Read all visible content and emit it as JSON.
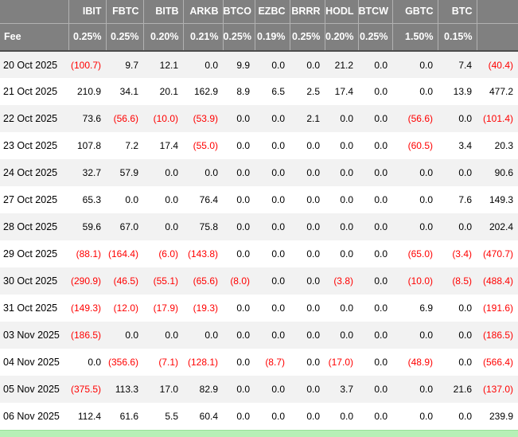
{
  "chart_data": {
    "type": "table",
    "columns": [
      "",
      "IBIT",
      "FBTC",
      "BITB",
      "ARKB",
      "BTCO",
      "EZBC",
      "BRRR",
      "HODL",
      "BTCW",
      "GBTC",
      "BTC",
      ""
    ],
    "fee_label": "Fee",
    "fees": [
      "0.25%",
      "0.25%",
      "0.20%",
      "0.21%",
      "0.25%",
      "0.19%",
      "0.25%",
      "0.20%",
      "0.25%",
      "1.50%",
      "0.15%"
    ],
    "rows": [
      {
        "date": "20 Oct 2025",
        "values": [
          "(100.7)",
          "9.7",
          "12.1",
          "0.0",
          "9.9",
          "0.0",
          "0.0",
          "21.2",
          "0.0",
          "0.0",
          "7.4",
          "(40.4)"
        ]
      },
      {
        "date": "21 Oct 2025",
        "values": [
          "210.9",
          "34.1",
          "20.1",
          "162.9",
          "8.9",
          "6.5",
          "2.5",
          "17.4",
          "0.0",
          "0.0",
          "13.9",
          "477.2"
        ]
      },
      {
        "date": "22 Oct 2025",
        "values": [
          "73.6",
          "(56.6)",
          "(10.0)",
          "(53.9)",
          "0.0",
          "0.0",
          "2.1",
          "0.0",
          "0.0",
          "(56.6)",
          "0.0",
          "(101.4)"
        ]
      },
      {
        "date": "23 Oct 2025",
        "values": [
          "107.8",
          "7.2",
          "17.4",
          "(55.0)",
          "0.0",
          "0.0",
          "0.0",
          "0.0",
          "0.0",
          "(60.5)",
          "3.4",
          "20.3"
        ]
      },
      {
        "date": "24 Oct 2025",
        "values": [
          "32.7",
          "57.9",
          "0.0",
          "0.0",
          "0.0",
          "0.0",
          "0.0",
          "0.0",
          "0.0",
          "0.0",
          "0.0",
          "90.6"
        ]
      },
      {
        "date": "27 Oct 2025",
        "values": [
          "65.3",
          "0.0",
          "0.0",
          "76.4",
          "0.0",
          "0.0",
          "0.0",
          "0.0",
          "0.0",
          "0.0",
          "7.6",
          "149.3"
        ]
      },
      {
        "date": "28 Oct 2025",
        "values": [
          "59.6",
          "67.0",
          "0.0",
          "75.8",
          "0.0",
          "0.0",
          "0.0",
          "0.0",
          "0.0",
          "0.0",
          "0.0",
          "202.4"
        ]
      },
      {
        "date": "29 Oct 2025",
        "values": [
          "(88.1)",
          "(164.4)",
          "(6.0)",
          "(143.8)",
          "0.0",
          "0.0",
          "0.0",
          "0.0",
          "0.0",
          "(65.0)",
          "(3.4)",
          "(470.7)"
        ]
      },
      {
        "date": "30 Oct 2025",
        "values": [
          "(290.9)",
          "(46.5)",
          "(55.1)",
          "(65.6)",
          "(8.0)",
          "0.0",
          "0.0",
          "(3.8)",
          "0.0",
          "(10.0)",
          "(8.5)",
          "(488.4)"
        ]
      },
      {
        "date": "31 Oct 2025",
        "values": [
          "(149.3)",
          "(12.0)",
          "(17.9)",
          "(19.3)",
          "0.0",
          "0.0",
          "0.0",
          "0.0",
          "0.0",
          "6.9",
          "0.0",
          "(191.6)"
        ]
      },
      {
        "date": "03 Nov 2025",
        "values": [
          "(186.5)",
          "0.0",
          "0.0",
          "0.0",
          "0.0",
          "0.0",
          "0.0",
          "0.0",
          "0.0",
          "0.0",
          "0.0",
          "(186.5)"
        ]
      },
      {
        "date": "04 Nov 2025",
        "values": [
          "0.0",
          "(356.6)",
          "(7.1)",
          "(128.1)",
          "0.0",
          "(8.7)",
          "0.0",
          "(17.0)",
          "0.0",
          "(48.9)",
          "0.0",
          "(566.4)"
        ]
      },
      {
        "date": "05 Nov 2025",
        "values": [
          "(375.5)",
          "113.3",
          "17.0",
          "82.9",
          "0.0",
          "0.0",
          "0.0",
          "3.7",
          "0.0",
          "0.0",
          "21.6",
          "(137.0)"
        ]
      },
      {
        "date": "06 Nov 2025",
        "values": [
          "112.4",
          "61.6",
          "5.5",
          "60.4",
          "0.0",
          "0.0",
          "0.0",
          "0.0",
          "0.0",
          "0.0",
          "0.0",
          "239.9"
        ]
      }
    ],
    "colors": {
      "header_bg": "#808080",
      "header_text": "#ffffff",
      "negative_text": "#ff0000",
      "value_text": "#000000",
      "alt_row_bg": "#f2f2f2",
      "row_bg": "#ffffff",
      "total_bar_bg": "#b6f0b6"
    }
  }
}
